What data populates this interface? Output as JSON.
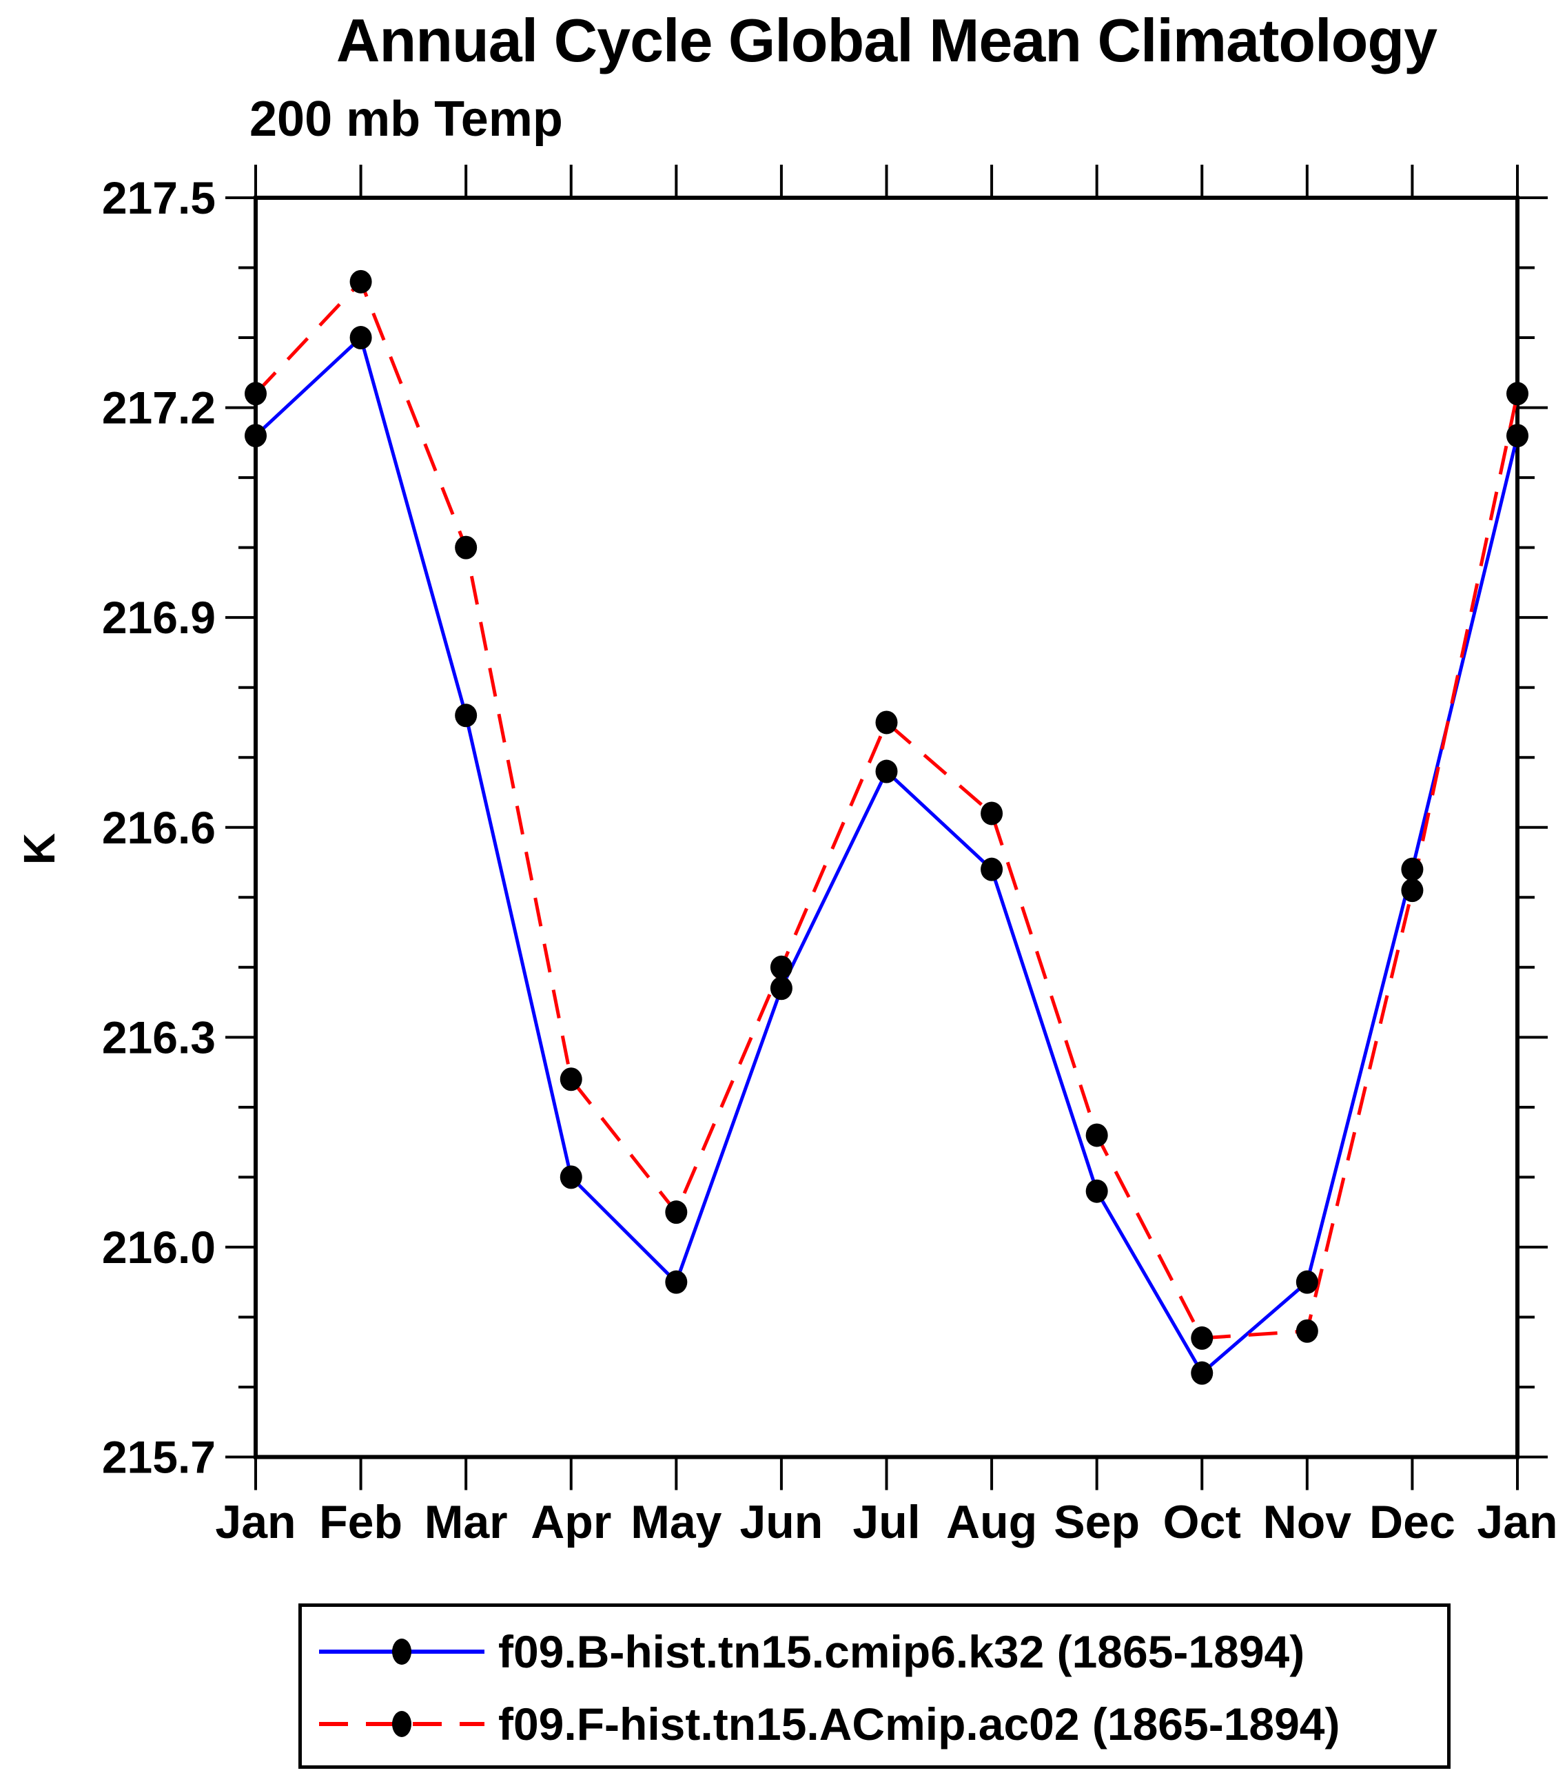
{
  "page": {
    "title": "Annual Cycle Global Mean Climatology",
    "subtitle": "200 mb Temp"
  },
  "chart_data": {
    "type": "line",
    "title": "Annual Cycle Global Mean Climatology",
    "subtitle": "200 mb Temp",
    "xlabel": "",
    "ylabel": "K",
    "x_categories": [
      "Jan",
      "Feb",
      "Mar",
      "Apr",
      "May",
      "Jun",
      "Jul",
      "Aug",
      "Sep",
      "Oct",
      "Nov",
      "Dec",
      "Jan"
    ],
    "ylim": [
      215.7,
      217.5
    ],
    "ytick_major": [
      215.7,
      216.0,
      216.3,
      216.6,
      216.9,
      217.2,
      217.5
    ],
    "ytick_minor_step": 0.1,
    "grid": false,
    "legend_position": "bottom",
    "axis_color": "#000000",
    "marker_color": "#000000",
    "series": [
      {
        "name": "f09.B-hist.tn15.cmip6.k32 (1865-1894)",
        "color": "#0000ff",
        "style": "solid",
        "marker": "circle",
        "values": [
          217.16,
          217.3,
          216.76,
          216.1,
          215.95,
          216.37,
          216.68,
          216.54,
          216.08,
          215.82,
          215.95,
          216.54,
          217.16
        ]
      },
      {
        "name": "f09.F-hist.tn15.ACmip.ac02 (1865-1894)",
        "color": "#ff0000",
        "style": "dashed",
        "marker": "circle",
        "values": [
          217.22,
          217.38,
          217.0,
          216.24,
          216.05,
          216.4,
          216.75,
          216.62,
          216.16,
          215.87,
          215.88,
          216.51,
          217.22
        ]
      }
    ]
  }
}
